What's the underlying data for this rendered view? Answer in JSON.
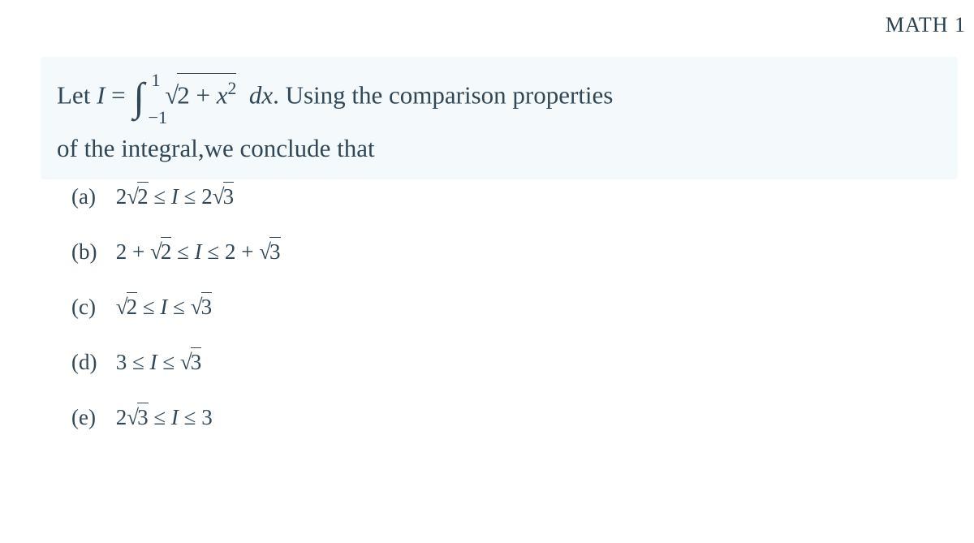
{
  "header": {
    "text": "MATH 1",
    "fontsize": 26,
    "color": "#2a4050"
  },
  "question": {
    "prefix": "Let ",
    "lhs": "I",
    "equals": " = ",
    "integral_lower": "−1",
    "integral_upper": "1",
    "integrand_radicand_a": "2 + ",
    "integrand_var": "x",
    "integrand_power": "2",
    "dx": "dx",
    "after": ".  Using the comparison properties",
    "line2": "of the integral,we conclude that",
    "box_bg": "#f4f9fb",
    "fontsize": 31,
    "text_color": "#304758"
  },
  "options": {
    "fontsize": 27,
    "color": "#304758",
    "items": [
      {
        "label": "(a)",
        "text": "2√2 ≤ I ≤ 2√3",
        "lhs_coeff": "2",
        "lhs_radicand": "2",
        "mid": "I",
        "rhs_coeff": "2",
        "rhs_radicand": "3"
      },
      {
        "label": "(b)",
        "text": "2 + √2 ≤ I ≤ 2 + √3",
        "lhs_pre": "2 + ",
        "lhs_radicand": "2",
        "mid": "I",
        "rhs_pre": "2 + ",
        "rhs_radicand": "3"
      },
      {
        "label": "(c)",
        "text": "√2 ≤ I ≤ √3",
        "lhs_radicand": "2",
        "mid": "I",
        "rhs_radicand": "3"
      },
      {
        "label": "(d)",
        "text": "3 ≤ I ≤ √3",
        "lhs_plain": "3",
        "mid": "I",
        "rhs_radicand": "3"
      },
      {
        "label": "(e)",
        "text": "2√3 ≤ I ≤ 3",
        "lhs_coeff": "2",
        "lhs_radicand": "3",
        "mid": "I",
        "rhs_plain": "3"
      }
    ]
  }
}
